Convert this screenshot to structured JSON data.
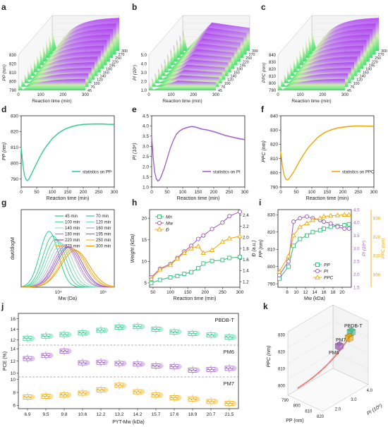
{
  "colors": {
    "green": "#2ecc8f",
    "purple": "#a05cc8",
    "orange": "#f0a500",
    "mw": "#2ebd78",
    "mn": "#9b59b6",
    "dispersity": "#f0a800",
    "red": "#e04040",
    "axis": "#222222",
    "dash": "#999999",
    "pbdbt_box": "#3cbf8a",
    "pm6_box": "#9b59b6",
    "pm7_box": "#e0a000"
  },
  "chart_data": [
    {
      "id": "a",
      "panel_label": "a",
      "type": "area",
      "xlabel": "Reaction time (min)",
      "ylabel": "PP (nm)",
      "yticks": [
        "790",
        "800",
        "810",
        "820",
        "830"
      ],
      "xticks": [
        "0",
        "100",
        "200",
        "300"
      ],
      "depth_ticks": [
        "300",
        "270",
        "250",
        "220",
        "195",
        "180",
        "160",
        "140",
        "120",
        "100",
        "70",
        "45"
      ]
    },
    {
      "id": "b",
      "panel_label": "b",
      "type": "area",
      "xlabel": "Reaction time (min)",
      "ylabel": "PI (10⁴)",
      "yticks": [
        "1.0",
        "2.0",
        "3.0",
        "4.0",
        "5.0"
      ],
      "xticks": [
        "0",
        "100",
        "200",
        "300"
      ],
      "depth_ticks": [
        "300",
        "270",
        "250",
        "220",
        "195",
        "180",
        "160",
        "140",
        "120",
        "100",
        "70",
        "45"
      ]
    },
    {
      "id": "c",
      "panel_label": "c",
      "type": "area",
      "xlabel": "Reaction time (min)",
      "ylabel": "PPC (nm)",
      "yticks": [
        "790",
        "800",
        "810",
        "820",
        "830",
        "840"
      ],
      "xticks": [
        "0",
        "100",
        "200",
        "300"
      ],
      "depth_ticks": [
        "300",
        "270",
        "250",
        "220",
        "195",
        "180",
        "160",
        "140",
        "120",
        "100",
        "70",
        "45"
      ]
    },
    {
      "id": "d",
      "panel_label": "d",
      "type": "line",
      "xlabel": "Reaction time (min)",
      "ylabel": "PP (nm)",
      "xlim": [
        0,
        300
      ],
      "ylim": [
        785,
        830
      ],
      "xticks": [
        0,
        50,
        100,
        150,
        200,
        250,
        300
      ],
      "yticks": [
        790,
        800,
        810,
        820,
        830
      ],
      "legend": "statistics on PP",
      "legend_position": "bottom-right",
      "series": [
        {
          "x": [
            0,
            5,
            10,
            15,
            20,
            25,
            30,
            40,
            50,
            60,
            70,
            80,
            90,
            100,
            120,
            140,
            160,
            180,
            200,
            220,
            240,
            260,
            280,
            300
          ],
          "y": [
            810,
            800,
            793,
            790,
            789,
            790,
            792,
            796,
            800,
            804,
            807.5,
            810.5,
            813,
            815.5,
            819,
            821.5,
            823,
            824,
            824.5,
            824.7,
            824.8,
            824.8,
            824.6,
            824.5
          ]
        }
      ]
    },
    {
      "id": "e",
      "panel_label": "e",
      "type": "line",
      "xlabel": "Reaction time (min)",
      "ylabel": "PI (10⁴)",
      "xlim": [
        0,
        300
      ],
      "ylim": [
        1.0,
        4.5
      ],
      "xticks": [
        0,
        50,
        100,
        150,
        200,
        250,
        300
      ],
      "yticks": [
        1.0,
        1.5,
        2.0,
        2.5,
        3.0,
        3.5,
        4.0,
        4.5
      ],
      "legend": "statistics on PI",
      "legend_position": "bottom-right",
      "series": [
        {
          "x": [
            0,
            5,
            10,
            15,
            20,
            25,
            30,
            40,
            50,
            60,
            70,
            80,
            90,
            100,
            110,
            120,
            130,
            140,
            150,
            160,
            180,
            200,
            220,
            240,
            260,
            280,
            300
          ],
          "y": [
            3.5,
            2.4,
            1.7,
            1.4,
            1.3,
            1.35,
            1.5,
            1.9,
            2.4,
            2.9,
            3.3,
            3.6,
            3.75,
            3.85,
            3.9,
            3.95,
            3.97,
            3.95,
            3.9,
            3.85,
            3.8,
            3.72,
            3.62,
            3.52,
            3.45,
            3.38,
            3.33
          ]
        }
      ]
    },
    {
      "id": "f",
      "panel_label": "f",
      "type": "line",
      "xlabel": "Reaction time (min)",
      "ylabel": "PPC (nm)",
      "xlim": [
        0,
        300
      ],
      "ylim": [
        790,
        840
      ],
      "xticks": [
        0,
        50,
        100,
        150,
        200,
        250,
        300
      ],
      "yticks": [
        790,
        800,
        810,
        820,
        830,
        840
      ],
      "legend": "statistics on PPC",
      "legend_position": "bottom-right",
      "series": [
        {
          "x": [
            0,
            5,
            10,
            15,
            20,
            25,
            30,
            40,
            50,
            60,
            70,
            80,
            90,
            100,
            120,
            140,
            160,
            180,
            200,
            220,
            240,
            260,
            280,
            300
          ],
          "y": [
            815,
            805,
            799,
            796,
            795,
            795.5,
            797,
            800,
            804,
            808,
            811.5,
            815,
            818,
            820.5,
            825,
            828,
            830,
            831.3,
            832,
            832.5,
            832.8,
            832.8,
            832.7,
            832.6
          ]
        }
      ]
    },
    {
      "id": "g",
      "panel_label": "g",
      "type": "line",
      "xlabel": "Mw (Da)",
      "ylabel": "dwt/dlogM",
      "xticks": [
        "10⁴",
        "10⁵"
      ],
      "legend_position": "top-right",
      "series": [
        {
          "name": "45 min",
          "color": "#2ecc8f",
          "peak": 0.3,
          "width": 0.16,
          "height": 1.0
        },
        {
          "name": "70 min",
          "color": "#45d098",
          "peak": 0.34,
          "width": 0.17,
          "height": 0.92
        },
        {
          "name": "100 min",
          "color": "#5ed4a4",
          "peak": 0.37,
          "width": 0.18,
          "height": 0.86
        },
        {
          "name": "120 min",
          "color": "#80dcb6",
          "peak": 0.4,
          "width": 0.19,
          "height": 0.82
        },
        {
          "name": "140 min",
          "color": "#a0e2c8",
          "peak": 0.43,
          "width": 0.2,
          "height": 0.78
        },
        {
          "name": "160 min",
          "color": "#c8a0dc",
          "peak": 0.46,
          "width": 0.21,
          "height": 0.76
        },
        {
          "name": "180 min",
          "color": "#b084d0",
          "peak": 0.48,
          "width": 0.21,
          "height": 0.74
        },
        {
          "name": "195 min",
          "color": "#a06cc8",
          "peak": 0.5,
          "width": 0.22,
          "height": 0.72
        },
        {
          "name": "220 min",
          "color": "#9b59b6",
          "peak": 0.52,
          "width": 0.22,
          "height": 0.72
        },
        {
          "name": "250 min",
          "color": "#e8c060",
          "peak": 0.54,
          "width": 0.23,
          "height": 0.7
        },
        {
          "name": "270 min",
          "color": "#f0b030",
          "peak": 0.56,
          "width": 0.23,
          "height": 0.68
        },
        {
          "name": "300 min",
          "color": "#f0a000",
          "peak": 0.58,
          "width": 0.24,
          "height": 0.66
        }
      ],
      "legend_left": [
        "45 min",
        "100 min",
        "140 min",
        "180 min",
        "220 min",
        "270 min"
      ],
      "legend_right": [
        "70 min",
        "120 min",
        "160 min",
        "195 min",
        "250 min",
        "300 min"
      ]
    },
    {
      "id": "h",
      "panel_label": "h",
      "type": "line",
      "xlabel": "Reaction time (min)",
      "ylabel": "Weight (kDa)",
      "ylabel_right": "Đ (a.u.)",
      "xlim": [
        40,
        300
      ],
      "ylim": [
        4,
        22
      ],
      "ylim_right": [
        1.1,
        2.5
      ],
      "xticks": [
        50,
        100,
        150,
        200,
        250,
        300
      ],
      "yticks": [
        5,
        10,
        15,
        20
      ],
      "yticks_right": [
        1.2,
        1.4,
        1.6,
        1.8,
        2.0,
        2.2,
        2.4
      ],
      "legend_position": "top-left",
      "series": [
        {
          "name": "Mn",
          "axis": "left",
          "marker": "square",
          "color": "#2ebd78",
          "x": [
            45,
            70,
            100,
            120,
            140,
            160,
            180,
            195,
            220,
            250,
            270,
            300
          ],
          "y": [
            5.0,
            5.7,
            6.3,
            6.6,
            7.1,
            7.5,
            8.4,
            9.5,
            10.1,
            10.3,
            10.8,
            11.0
          ]
        },
        {
          "name": "Mw",
          "axis": "left",
          "marker": "circle",
          "color": "#9b59b6",
          "x": [
            45,
            70,
            100,
            120,
            140,
            160,
            180,
            195,
            220,
            250,
            270,
            300
          ],
          "y": [
            6.3,
            8.3,
            9.4,
            10.8,
            12.3,
            13.6,
            15.2,
            16.0,
            17.5,
            19.0,
            20.5,
            21.5
          ]
        },
        {
          "name": "Đ",
          "axis": "right",
          "marker": "triangle",
          "color": "#f0a800",
          "x": [
            45,
            70,
            100,
            120,
            140,
            160,
            180,
            195,
            220,
            250,
            270,
            300
          ],
          "y": [
            1.25,
            1.42,
            1.5,
            1.62,
            1.72,
            1.8,
            1.84,
            1.72,
            1.77,
            1.92,
            1.98,
            2.02
          ]
        }
      ]
    },
    {
      "id": "i",
      "panel_label": "i",
      "type": "line",
      "xlabel": "Mw (kDa)",
      "ylabel": "PP (nm)",
      "ylabel_right": "PI (10⁴)",
      "ylabel_right2": "PPC (nm)",
      "xlim": [
        6,
        22
      ],
      "ylim": [
        788,
        833
      ],
      "xticks": [
        8,
        10,
        12,
        14,
        16,
        18,
        20
      ],
      "yticks": [
        790,
        800,
        810,
        820,
        830
      ],
      "yticks_right": [
        "1.5",
        "2.0",
        "2.5",
        "3.0",
        "3.5",
        "4.0",
        "4.5"
      ],
      "yticks_right2": [
        800,
        810,
        820,
        830
      ],
      "legend_position": "bottom-right",
      "series": [
        {
          "name": "PP",
          "marker": "square",
          "color": "#2ebd78",
          "x": [
            6.3,
            8.3,
            9.4,
            10.8,
            12.3,
            13.6,
            15.2,
            16.0,
            17.5,
            19.0,
            20.5,
            21.5
          ],
          "y": [
            793,
            800,
            812,
            816,
            818,
            820,
            821,
            822,
            823,
            823.5,
            824,
            824.5
          ]
        },
        {
          "name": "PI",
          "marker": "circle",
          "color": "#9b59b6",
          "x": [
            6.3,
            8.3,
            9.4,
            10.8,
            12.3,
            13.6,
            15.2,
            16.0,
            17.5,
            19.0,
            20.5,
            21.5
          ],
          "y": [
            795,
            803,
            826,
            828,
            829,
            828,
            827,
            826,
            825,
            823,
            822,
            822
          ]
        },
        {
          "name": "PPC",
          "marker": "triangle",
          "color": "#f0a800",
          "x": [
            6.3,
            8.3,
            9.4,
            10.8,
            12.3,
            13.6,
            15.2,
            16.0,
            17.5,
            19.0,
            20.5,
            21.5
          ],
          "y": [
            797,
            806,
            818,
            823,
            825,
            827,
            828,
            829,
            829.5,
            829.7,
            830,
            830
          ]
        }
      ]
    },
    {
      "id": "j",
      "panel_label": "j",
      "type": "scatter",
      "xlabel": "PYT-Mw (kDa)",
      "ylabel": "PCE (%)",
      "categories": [
        "6.9",
        "9.5",
        "9.8",
        "10.6",
        "12.2",
        "13.2",
        "14.2",
        "15.7",
        "17.6",
        "18.9",
        "20.7",
        "21.5"
      ],
      "groups": [
        {
          "name": "PBDB-T",
          "color": "#2ecc8f",
          "yticks": [
            12,
            14,
            16
          ],
          "ylim": [
            11,
            17
          ],
          "values": [
            12.3,
            12.7,
            13.0,
            13.3,
            13.8,
            14.4,
            14.5,
            14.0,
            13.5,
            13.2,
            12.9,
            12.5
          ]
        },
        {
          "name": "PM6",
          "color": "#a05cc8",
          "yticks": [
            10,
            12,
            14
          ],
          "ylim": [
            9.4,
            14.6
          ],
          "values": [
            12.4,
            12.9,
            13.6,
            11.7,
            11.8,
            11.6,
            11.5,
            11.2,
            11.1,
            10.5,
            10.6,
            10.8
          ]
        },
        {
          "name": "PM7",
          "color": "#f0a500",
          "yticks": [
            6,
            8,
            10
          ],
          "ylim": [
            5.5,
            10.4
          ],
          "values": [
            7.3,
            7.4,
            7.6,
            7.9,
            8.4,
            9.1,
            8.1,
            7.6,
            7.2,
            7.0,
            6.6,
            6.3
          ]
        }
      ]
    },
    {
      "id": "k",
      "panel_label": "k",
      "type": "line",
      "xlabel": "PP (nm)",
      "ylabel": "PPC (nm)",
      "zlabel": "PI (10⁴)",
      "xticks": [
        "790",
        "800",
        "810",
        "820"
      ],
      "yticks": [
        "800",
        "810",
        "820",
        "830"
      ],
      "zticks": [
        "2.0",
        "3.0",
        "4.0"
      ],
      "labels": [
        "PBDB-T",
        "PM7",
        "PM6"
      ]
    }
  ]
}
